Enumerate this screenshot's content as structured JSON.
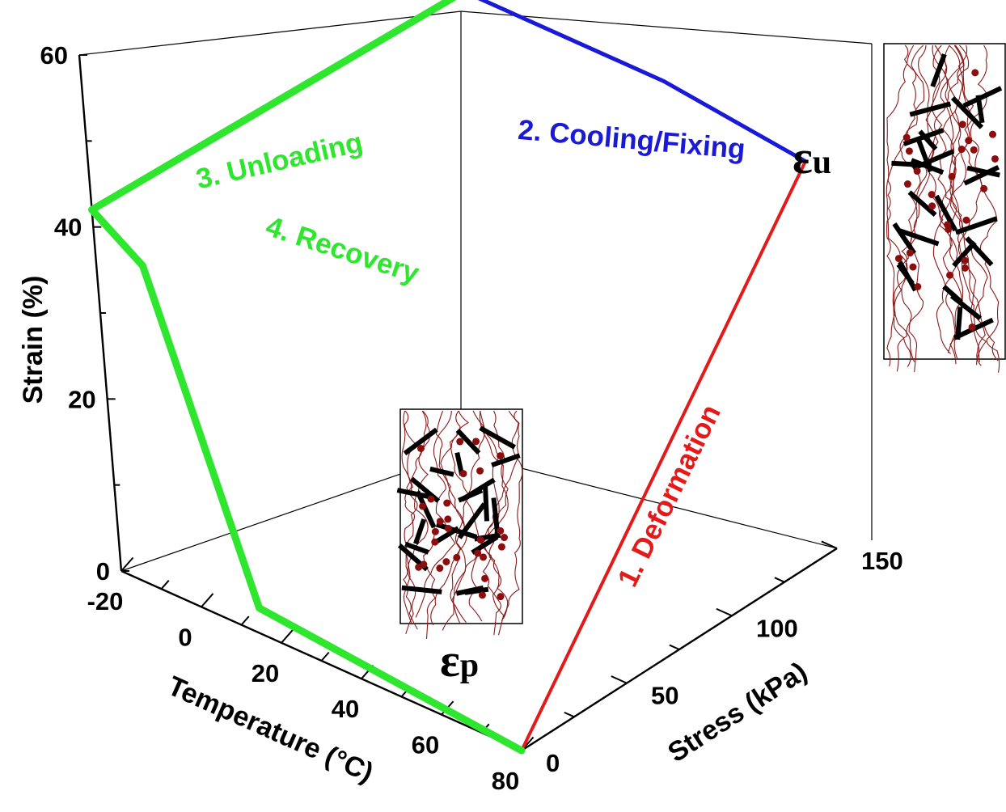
{
  "chart_data": {
    "type": "line3d",
    "axes": {
      "x": {
        "label": "Temperature (°C)",
        "ticks": [
          "-20",
          "0",
          "20",
          "40",
          "60",
          "80"
        ],
        "range": [
          -20,
          80
        ]
      },
      "y": {
        "label": "Stress (kPa)",
        "ticks": [
          "0",
          "50",
          "100",
          "150"
        ],
        "range": [
          0,
          150
        ]
      },
      "z": {
        "label": "Strain (%)",
        "ticks": [
          "0",
          "20",
          "40",
          "60"
        ],
        "range": [
          0,
          60
        ]
      }
    },
    "series": [
      {
        "name": "1. Deformation",
        "color": "#e41a1a",
        "points": [
          [
            80,
            0,
            0
          ],
          [
            80,
            150,
            45
          ]
        ]
      },
      {
        "name": "2. Cooling/Fixing",
        "color": "#1a1ad6",
        "points": [
          [
            80,
            150,
            45
          ],
          [
            45,
            150,
            47
          ],
          [
            -5,
            150,
            47
          ]
        ]
      },
      {
        "name": "3. Unloading",
        "color": "#2ee62e",
        "points": [
          [
            -5,
            150,
            47
          ],
          [
            -20,
            0,
            42
          ]
        ]
      },
      {
        "name": "4. Recovery",
        "color": "#2ee62e",
        "points": [
          [
            -20,
            0,
            42
          ],
          [
            -8,
            0,
            38
          ],
          [
            15,
            0,
            3
          ],
          [
            80,
            0,
            0
          ]
        ]
      }
    ],
    "annotations": {
      "eps_p_main": "ε",
      "eps_p_sub": "p",
      "eps_u_main": "ε",
      "eps_u_sub": "u"
    },
    "insets": [
      "unloaded-network",
      "deformed-network"
    ]
  }
}
